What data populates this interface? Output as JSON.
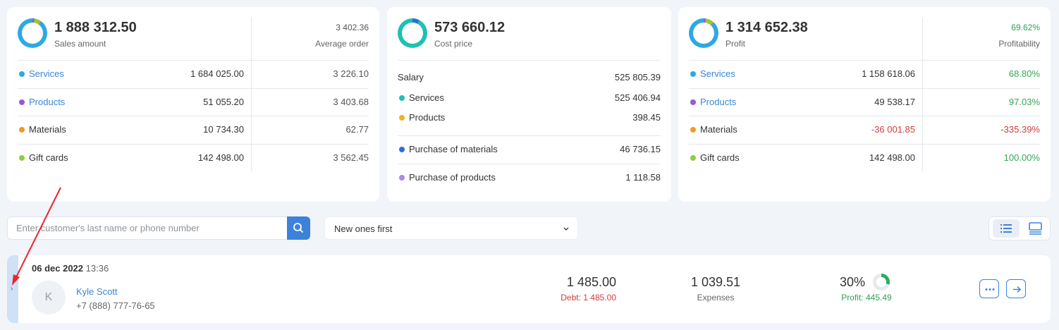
{
  "sales": {
    "total": "1 888 312.50",
    "total_label": "Sales amount",
    "avg": "3 402.36",
    "avg_label": "Average order",
    "rows": [
      {
        "label": "Services",
        "value": "1 684 025.00",
        "avg": "3 226.10",
        "color": "#2ea8e5"
      },
      {
        "label": "Products",
        "value": "51 055.20",
        "avg": "3 403.68",
        "color": "#9c55d9"
      },
      {
        "label": "Materials",
        "value": "10 734.30",
        "avg": "62.77",
        "color": "#f39a1e"
      },
      {
        "label": "Gift cards",
        "value": "142 498.00",
        "avg": "3 562.45",
        "color": "#8ccf3a"
      }
    ]
  },
  "cost": {
    "total": "573 660.12",
    "total_label": "Cost price",
    "salary_label": "Salary",
    "salary_value": "525 805.39",
    "rows": [
      {
        "label": "Services",
        "value": "525 406.94",
        "color": "#1ec1b3"
      },
      {
        "label": "Products",
        "value": "398.45",
        "color": "#f0b51e"
      },
      {
        "label": "Purchase of materials",
        "value": "46 736.15",
        "color": "#2b6fd6"
      },
      {
        "label": "Purchase of products",
        "value": "1 118.58",
        "color": "#a98be3"
      }
    ]
  },
  "profit": {
    "total": "1 314 652.38",
    "total_label": "Profit",
    "rate": "69.62%",
    "rate_label": "Profitability",
    "rows": [
      {
        "label": "Services",
        "value": "1 158 618.06",
        "rate": "68.80%",
        "color": "#2ea8e5"
      },
      {
        "label": "Products",
        "value": "49 538.17",
        "rate": "97.03%",
        "color": "#9c55d9"
      },
      {
        "label": "Materials",
        "value": "-36 001.85",
        "rate": "-335.39%",
        "color": "#f39a1e"
      },
      {
        "label": "Gift cards",
        "value": "142 498.00",
        "rate": "100.00%",
        "color": "#8ccf3a"
      }
    ]
  },
  "search": {
    "placeholder": "Enter customer's last name or phone number"
  },
  "sort": {
    "selected": "New ones first"
  },
  "order": {
    "date": "06 dec 2022",
    "time": "13:36",
    "avatar_letter": "K",
    "customer_name": "Kyle Scott",
    "customer_phone": "+7 (888) 777-76-65",
    "total": "1 485.00",
    "debt": "Debt: 1 485.00",
    "expenses": "1 039.51",
    "expenses_label": "Expenses",
    "profit_percent": "30%",
    "profit_fraction": 0.3,
    "profit": "Profit: 445.49"
  },
  "colors": {
    "accent": "#3d82da",
    "negative": "#d63b3b",
    "positive": "#2e9f57",
    "annotation": "#e8262b"
  },
  "icons": [
    "search-icon",
    "chevron-down-icon",
    "list-view-icon",
    "card-view-icon",
    "chevron-right-icon",
    "more-icon",
    "arrow-right-icon"
  ]
}
